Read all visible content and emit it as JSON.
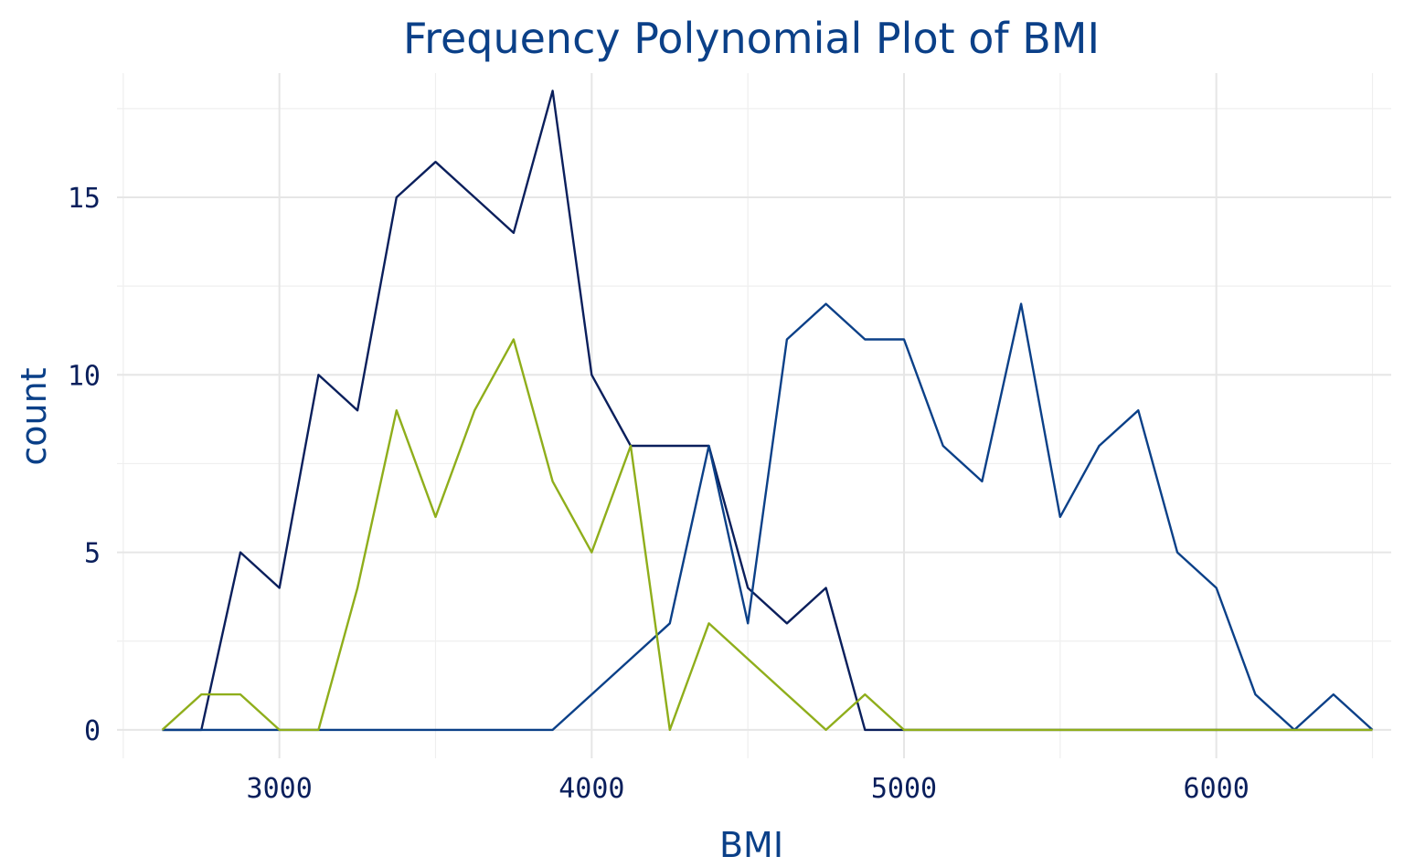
{
  "chart_data": {
    "type": "line",
    "title": "Frequency Polynomial Plot of BMI",
    "xlabel": "BMI",
    "ylabel": "count",
    "xlim": [
      2480,
      6560
    ],
    "ylim": [
      -0.8,
      18.5
    ],
    "x_ticks": [
      3000,
      4000,
      5000,
      6000
    ],
    "x_tick_labels": [
      "3000",
      "4000",
      "5000",
      "6000"
    ],
    "y_ticks": [
      0,
      5,
      10,
      15
    ],
    "y_tick_labels": [
      "0",
      "5",
      "10",
      "15"
    ],
    "grid": true,
    "legend": "none",
    "x": [
      2625,
      2750,
      2875,
      3000,
      3125,
      3250,
      3375,
      3500,
      3625,
      3750,
      3875,
      4000,
      4125,
      4250,
      4375,
      4500,
      4625,
      4750,
      4875,
      5000,
      5125,
      5250,
      5375,
      5500,
      5625,
      5750,
      5875,
      6000,
      6125,
      6250,
      6375,
      6500
    ],
    "series": [
      {
        "color": "#0a1f5c",
        "values": [
          0,
          0,
          5,
          4,
          10,
          9,
          15,
          16,
          15,
          14,
          18,
          10,
          8,
          8,
          8,
          4,
          3,
          4,
          0,
          0,
          0,
          0,
          0,
          0,
          0,
          0,
          0,
          0,
          0,
          0,
          0,
          0
        ]
      },
      {
        "color": "#0b4088",
        "values": [
          0,
          0,
          0,
          0,
          0,
          0,
          0,
          0,
          0,
          0,
          0,
          1,
          2,
          3,
          8,
          3,
          11,
          12,
          11,
          11,
          8,
          7,
          12,
          6,
          8,
          9,
          5,
          4,
          1,
          0,
          1,
          0
        ]
      },
      {
        "color": "#8fae1b",
        "values": [
          0,
          1,
          1,
          0,
          0,
          4,
          9,
          6,
          9,
          11,
          7,
          5,
          8,
          0,
          3,
          2,
          1,
          0,
          1,
          0,
          0,
          0,
          0,
          0,
          0,
          0,
          0,
          0,
          0,
          0,
          0,
          0
        ]
      }
    ]
  }
}
